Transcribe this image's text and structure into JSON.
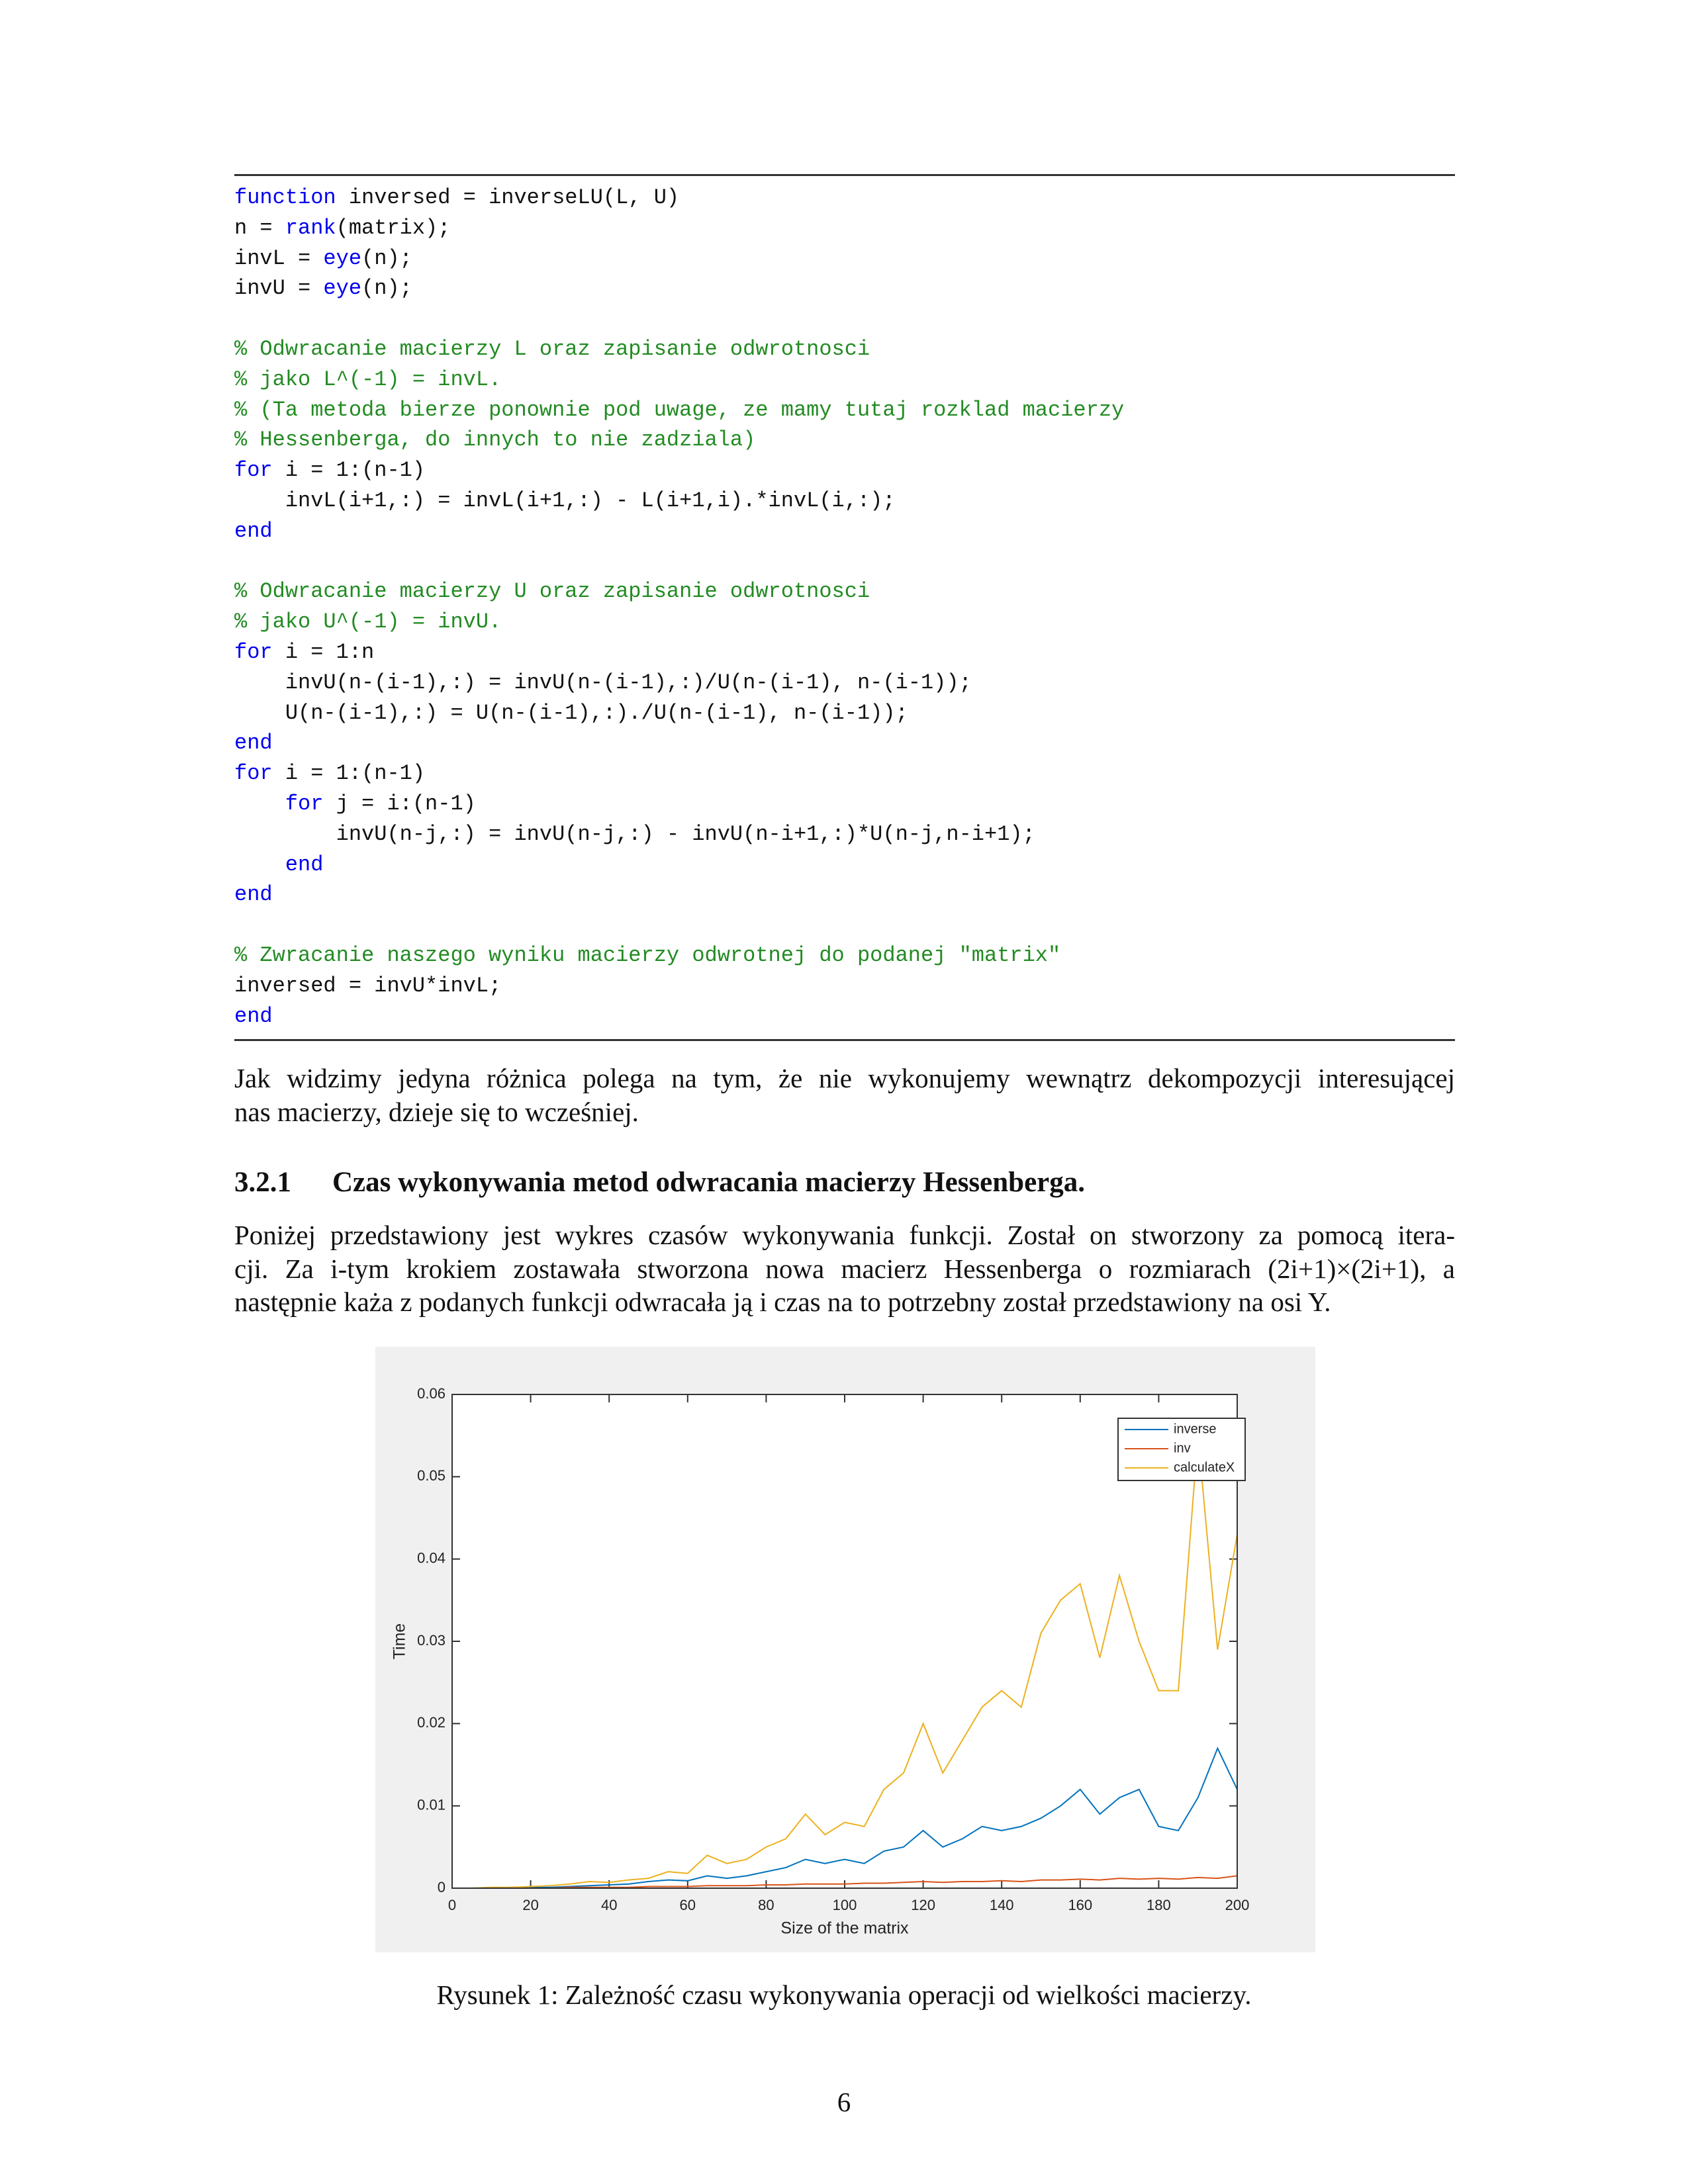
{
  "code": {
    "styles": {
      "keyword": "#0000ee",
      "comment": "#228b22"
    },
    "lines": [
      {
        "segments": [
          {
            "text": "function",
            "style": "keyword"
          },
          {
            "text": " inversed = inverseLU(L, U)"
          }
        ]
      },
      {
        "segments": [
          {
            "text": "n = "
          },
          {
            "text": "rank",
            "style": "keyword"
          },
          {
            "text": "(matrix);"
          }
        ]
      },
      {
        "segments": [
          {
            "text": "invL = "
          },
          {
            "text": "eye",
            "style": "keyword"
          },
          {
            "text": "(n);"
          }
        ]
      },
      {
        "segments": [
          {
            "text": "invU = "
          },
          {
            "text": "eye",
            "style": "keyword"
          },
          {
            "text": "(n);"
          }
        ]
      },
      {
        "segments": []
      },
      {
        "segments": [
          {
            "text": "% Odwracanie macierzy L oraz zapisanie odwrotnosci",
            "style": "comment"
          }
        ]
      },
      {
        "segments": [
          {
            "text": "% jako L^(-1) = invL.",
            "style": "comment"
          }
        ]
      },
      {
        "segments": [
          {
            "text": "% (Ta metoda bierze ponownie pod uwage, ze mamy tutaj rozklad macierzy",
            "style": "comment"
          }
        ]
      },
      {
        "segments": [
          {
            "text": "% Hessenberga, do innych to nie zadziala)",
            "style": "comment"
          }
        ]
      },
      {
        "segments": [
          {
            "text": "for",
            "style": "keyword"
          },
          {
            "text": " i = 1:(n-1)"
          }
        ]
      },
      {
        "segments": [
          {
            "text": "    invL(i+1,:) = invL(i+1,:) - L(i+1,i).*invL(i,:);"
          }
        ]
      },
      {
        "segments": [
          {
            "text": "end",
            "style": "keyword"
          }
        ]
      },
      {
        "segments": []
      },
      {
        "segments": [
          {
            "text": "% Odwracanie macierzy U oraz zapisanie odwrotnosci",
            "style": "comment"
          }
        ]
      },
      {
        "segments": [
          {
            "text": "% jako U^(-1) = invU.",
            "style": "comment"
          }
        ]
      },
      {
        "segments": [
          {
            "text": "for",
            "style": "keyword"
          },
          {
            "text": " i = 1:n"
          }
        ]
      },
      {
        "segments": [
          {
            "text": "    invU(n-(i-1),:) = invU(n-(i-1),:)/U(n-(i-1), n-(i-1));"
          }
        ]
      },
      {
        "segments": [
          {
            "text": "    U(n-(i-1),:) = U(n-(i-1),:)./U(n-(i-1), n-(i-1));"
          }
        ]
      },
      {
        "segments": [
          {
            "text": "end",
            "style": "keyword"
          }
        ]
      },
      {
        "segments": [
          {
            "text": "for",
            "style": "keyword"
          },
          {
            "text": " i = 1:(n-1)"
          }
        ]
      },
      {
        "segments": [
          {
            "text": "    "
          },
          {
            "text": "for",
            "style": "keyword"
          },
          {
            "text": " j = i:(n-1)"
          }
        ]
      },
      {
        "segments": [
          {
            "text": "        invU(n-j,:) = invU(n-j,:) - invU(n-i+1,:)*U(n-j,n-i+1);"
          }
        ]
      },
      {
        "segments": [
          {
            "text": "    "
          },
          {
            "text": "end",
            "style": "keyword"
          }
        ]
      },
      {
        "segments": [
          {
            "text": "end",
            "style": "keyword"
          }
        ]
      },
      {
        "segments": []
      },
      {
        "segments": [
          {
            "text": "% Zwracanie naszego wyniku macierzy odwrotnej do podanej \"matrix\"",
            "style": "comment"
          }
        ]
      },
      {
        "segments": [
          {
            "text": "inversed = invU*invL;"
          }
        ]
      },
      {
        "segments": [
          {
            "text": "end",
            "style": "keyword"
          }
        ]
      }
    ]
  },
  "paragraph1": {
    "lines": [
      "Jak widzimy jedyna różnica polega na tym, że nie wykonujemy wewnątrz dekompozycji interesującej",
      "nas macierzy, dzieje się to wcześniej."
    ]
  },
  "section": {
    "number": "3.2.1",
    "title": "Czas wykonywania metod odwracania macierzy Hessenberga."
  },
  "paragraph2": {
    "lines": [
      "Poniżej przedstawiony jest wykres czasów wykonywania funkcji. Został on stworzony za pomocą itera-",
      "cji. Za i-tym krokiem zostawała stworzona nowa macierz Hessenberga o rozmiarach (2i+1)×(2i+1), a",
      "następnie każa z podanych funkcji odwracała ją i czas na to potrzebny został przedstawiony na osi Y."
    ]
  },
  "chart_data": {
    "type": "line",
    "x_label": "Size of the matrix",
    "y_label": "Time",
    "x": [
      5,
      10,
      15,
      20,
      25,
      30,
      35,
      40,
      45,
      50,
      55,
      60,
      65,
      70,
      75,
      80,
      85,
      90,
      95,
      100,
      105,
      110,
      115,
      120,
      125,
      130,
      135,
      140,
      145,
      150,
      155,
      160,
      165,
      170,
      175,
      180,
      185,
      190,
      195,
      200
    ],
    "series": [
      {
        "name": "inverse",
        "color": "#0072bd",
        "values": [
          0,
          0,
          0.0001,
          0.0001,
          0.0001,
          0.0002,
          0.0003,
          0.0004,
          0.0005,
          0.0008,
          0.001,
          0.0009,
          0.0015,
          0.0012,
          0.0015,
          0.002,
          0.0025,
          0.0035,
          0.003,
          0.0035,
          0.003,
          0.0045,
          0.005,
          0.007,
          0.005,
          0.006,
          0.0075,
          0.007,
          0.0075,
          0.0085,
          0.01,
          0.012,
          0.009,
          0.011,
          0.012,
          0.0075,
          0.007,
          0.011,
          0.017,
          0.012
        ]
      },
      {
        "name": "inv",
        "color": "#d95319",
        "values": [
          0,
          0,
          0,
          0,
          0,
          0.0001,
          0.0001,
          0.0001,
          0.0001,
          0.0002,
          0.0002,
          0.0002,
          0.0003,
          0.0003,
          0.0003,
          0.0004,
          0.0004,
          0.0005,
          0.0005,
          0.0005,
          0.0006,
          0.0006,
          0.0007,
          0.0008,
          0.0007,
          0.0008,
          0.0008,
          0.0009,
          0.0008,
          0.001,
          0.001,
          0.0011,
          0.001,
          0.0012,
          0.0011,
          0.0012,
          0.0011,
          0.0013,
          0.0012,
          0.0015
        ]
      },
      {
        "name": "calculateX",
        "color": "#edb120",
        "values": [
          0,
          0.0001,
          0.0001,
          0.0002,
          0.0003,
          0.0005,
          0.0008,
          0.0007,
          0.001,
          0.0012,
          0.002,
          0.0018,
          0.004,
          0.003,
          0.0035,
          0.005,
          0.006,
          0.009,
          0.0065,
          0.008,
          0.0075,
          0.012,
          0.014,
          0.02,
          0.014,
          0.018,
          0.022,
          0.024,
          0.022,
          0.031,
          0.035,
          0.037,
          0.028,
          0.038,
          0.03,
          0.024,
          0.024,
          0.055,
          0.029,
          0.043
        ]
      }
    ],
    "xlim": [
      0,
      200
    ],
    "ylim": [
      0,
      0.06
    ],
    "xticks": [
      0,
      20,
      40,
      60,
      80,
      100,
      120,
      140,
      160,
      180,
      200
    ],
    "yticks": [
      0,
      0.01,
      0.02,
      0.03,
      0.04,
      0.05,
      0.06
    ],
    "legend": "north-east"
  },
  "caption": "Rysunek 1: Zależność czasu wykonywania operacji od wielkości macierzy.",
  "page_number": "6"
}
